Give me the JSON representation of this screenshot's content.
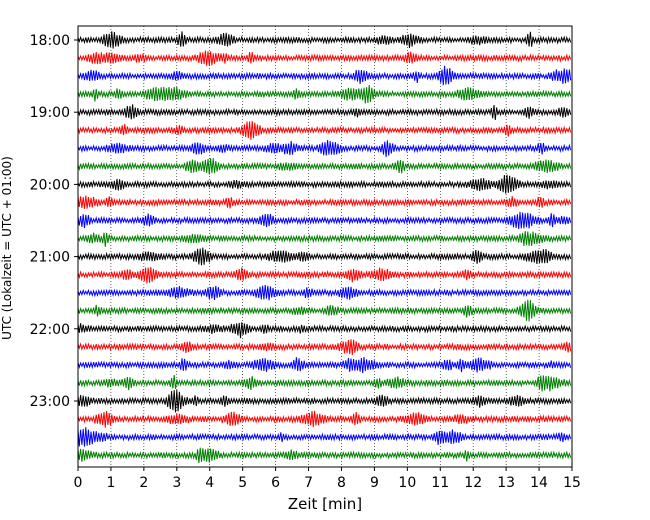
{
  "chart_data": {
    "type": "line",
    "title": "",
    "xlabel": "Zeit  [min]",
    "ylabel": "UTC (Lokalzeit = UTC + 01:00)",
    "xlim": [
      0,
      15
    ],
    "x_ticks": [
      "0",
      "1",
      "2",
      "3",
      "4",
      "5",
      "6",
      "7",
      "8",
      "9",
      "10",
      "11",
      "12",
      "13",
      "14",
      "15"
    ],
    "y_tick_labels": [
      "18:00",
      "19:00",
      "20:00",
      "21:00",
      "22:00",
      "23:00"
    ],
    "grid": "vertical dotted",
    "legend": "none",
    "trace_colors": [
      "#000000",
      "#ff0000",
      "#0000ff",
      "#008000"
    ],
    "series": [
      {
        "start": "18:00",
        "color": "#000000"
      },
      {
        "start": "18:15",
        "color": "#ff0000"
      },
      {
        "start": "18:30",
        "color": "#0000ff"
      },
      {
        "start": "18:45",
        "color": "#008000"
      },
      {
        "start": "19:00",
        "color": "#000000"
      },
      {
        "start": "19:15",
        "color": "#ff0000"
      },
      {
        "start": "19:30",
        "color": "#0000ff"
      },
      {
        "start": "19:45",
        "color": "#008000"
      },
      {
        "start": "20:00",
        "color": "#000000"
      },
      {
        "start": "20:15",
        "color": "#ff0000"
      },
      {
        "start": "20:30",
        "color": "#0000ff"
      },
      {
        "start": "20:45",
        "color": "#008000"
      },
      {
        "start": "21:00",
        "color": "#000000"
      },
      {
        "start": "21:15",
        "color": "#ff0000"
      },
      {
        "start": "21:30",
        "color": "#0000ff"
      },
      {
        "start": "21:45",
        "color": "#008000"
      },
      {
        "start": "22:00",
        "color": "#000000"
      },
      {
        "start": "22:15",
        "color": "#ff0000"
      },
      {
        "start": "22:30",
        "color": "#0000ff"
      },
      {
        "start": "22:45",
        "color": "#008000"
      },
      {
        "start": "23:00",
        "color": "#000000"
      },
      {
        "start": "23:15",
        "color": "#ff0000"
      },
      {
        "start": "23:30",
        "color": "#0000ff"
      },
      {
        "start": "23:45",
        "color": "#008000"
      }
    ]
  }
}
